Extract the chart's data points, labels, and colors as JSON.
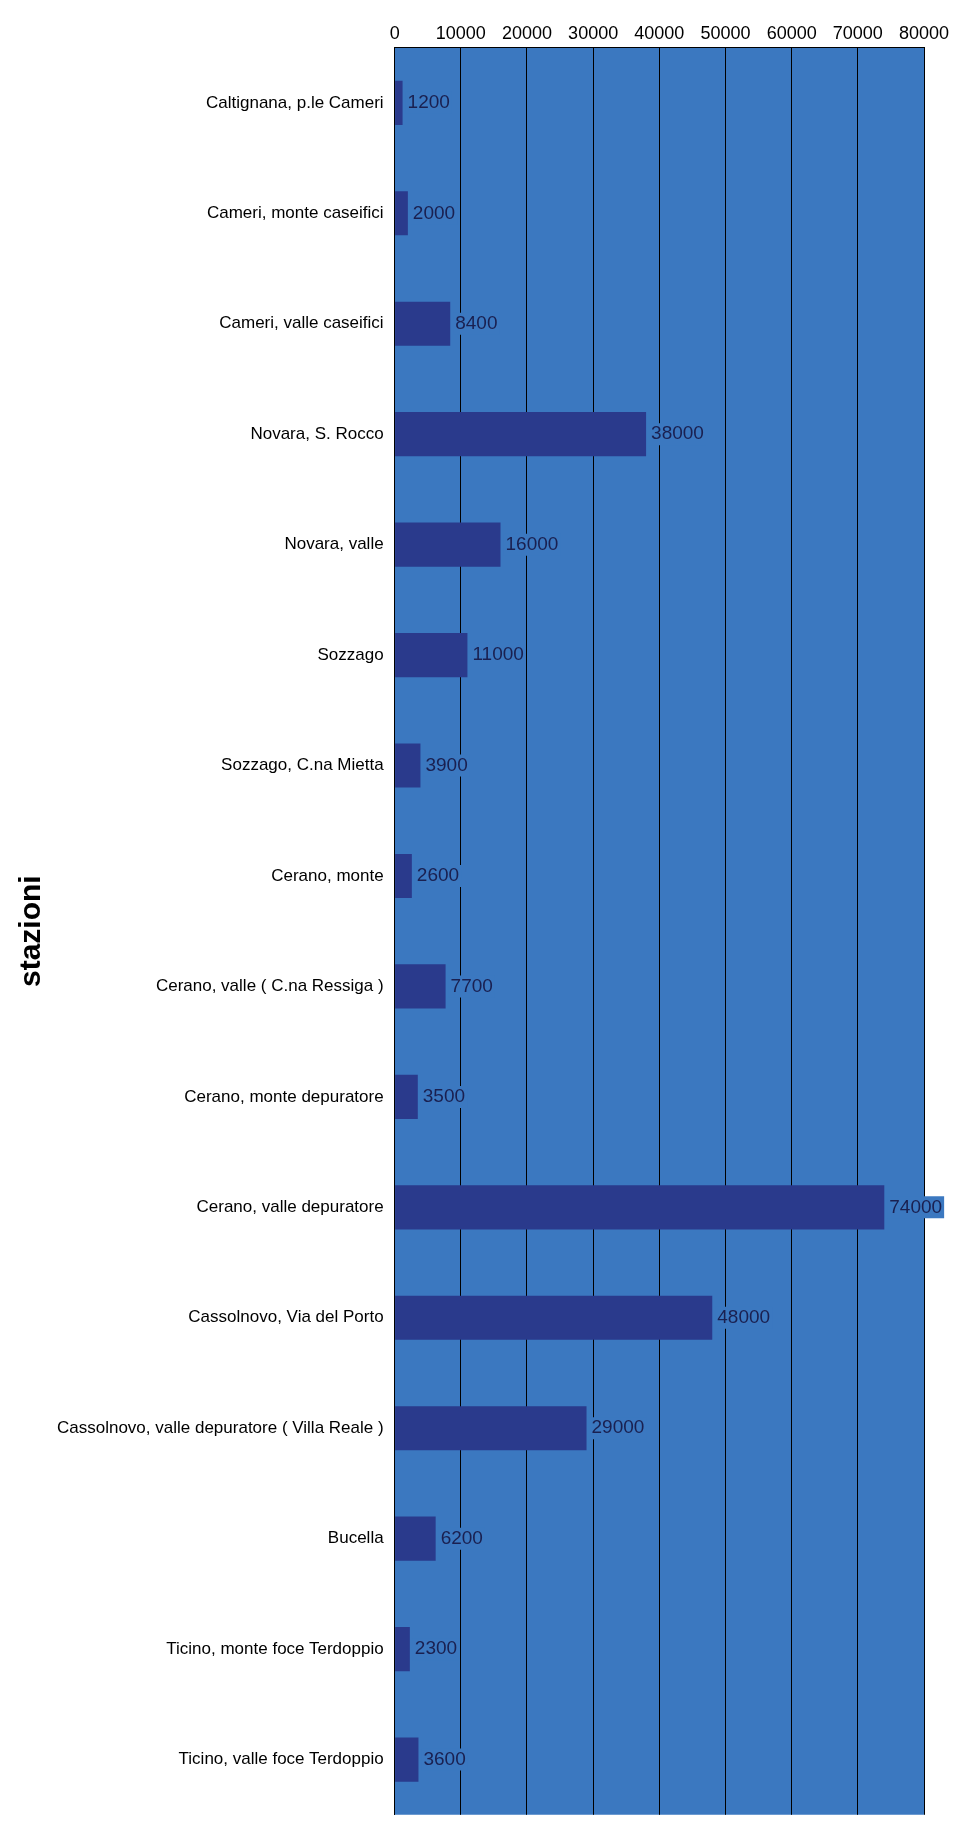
{
  "chart_data": {
    "type": "bar",
    "orientation": "horizontal",
    "ylabel": "stazioni",
    "categories": [
      "Caltignana, p.le Cameri",
      "Cameri, monte caseifici",
      "Cameri, valle caseifici",
      "Novara, S. Rocco",
      "Novara, valle",
      "Sozzago",
      "Sozzago, C.na Mietta",
      "Cerano, monte",
      "Cerano, valle ( C.na Ressiga )",
      "Cerano, monte depuratore",
      "Cerano, valle depuratore",
      "Cassolnovo, Via del Porto",
      "Cassolnovo, valle depuratore ( Villa Reale )",
      "Bucella",
      "Ticino, monte foce Terdoppio",
      "Ticino, valle foce Terdoppio"
    ],
    "values": [
      1200,
      2000,
      8400,
      38000,
      16000,
      11000,
      3900,
      2600,
      7700,
      3500,
      74000,
      48000,
      29000,
      6200,
      2300,
      3600
    ],
    "color": "#2a3a8c",
    "xlim": [
      0,
      80000
    ],
    "xticks": [
      0,
      10000,
      20000,
      30000,
      40000,
      50000,
      60000,
      70000,
      80000
    ],
    "grid": "x",
    "data_labels": true
  }
}
